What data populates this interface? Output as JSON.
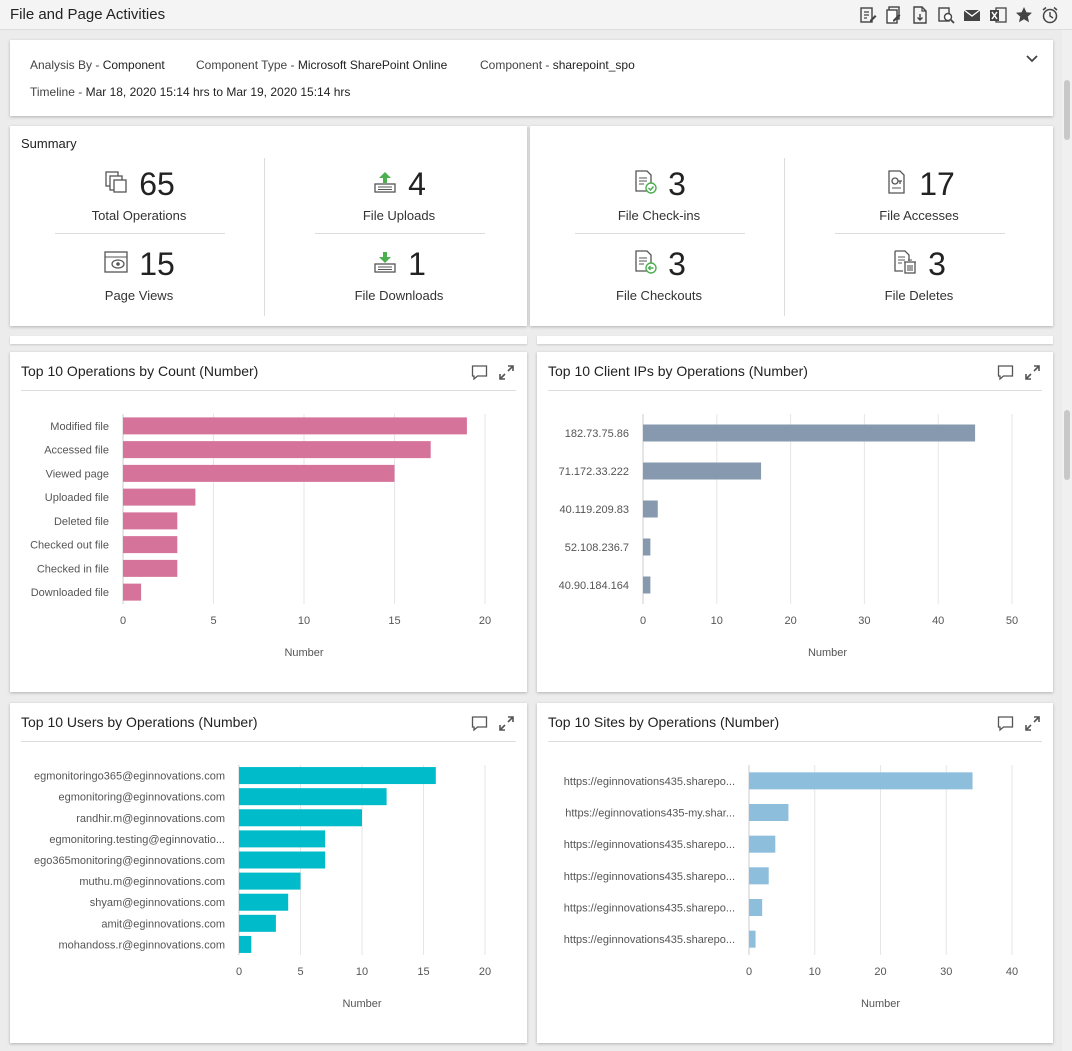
{
  "page": {
    "title": "File and Page Activities"
  },
  "toolbar": {
    "icons": [
      "edit-report-icon",
      "copy-report-icon",
      "pdf-export-icon",
      "print-preview-icon",
      "email-icon",
      "excel-export-icon",
      "favorite-star-icon",
      "schedule-alarm-icon"
    ]
  },
  "filters": {
    "analysis_by_label": "Analysis By - ",
    "analysis_by_value": "Component",
    "component_type_label": "Component Type - ",
    "component_type_value": "Microsoft SharePoint Online",
    "component_label": "Component - ",
    "component_value": "sharepoint_spo",
    "timeline_label": "Timeline - ",
    "timeline_value": "Mar 18, 2020 15:14 hrs to Mar 19, 2020 15:14 hrs"
  },
  "summary": {
    "title": "Summary",
    "total_operations": {
      "value": "65",
      "label": "Total Operations"
    },
    "file_uploads": {
      "value": "4",
      "label": "File Uploads"
    },
    "page_views": {
      "value": "15",
      "label": "Page Views"
    },
    "file_downloads": {
      "value": "1",
      "label": "File Downloads"
    },
    "file_checkins": {
      "value": "3",
      "label": "File Check-ins"
    },
    "file_accesses": {
      "value": "17",
      "label": "File Accesses"
    },
    "file_checkouts": {
      "value": "3",
      "label": "File Checkouts"
    },
    "file_deletes": {
      "value": "3",
      "label": "File Deletes"
    }
  },
  "colors": {
    "operations": "#d5739a",
    "client_ips": "#8699ae",
    "users": "#00bbc9",
    "sites": "#8dbedc",
    "icon_green": "#4caf50"
  },
  "chart_data": [
    {
      "type": "bar",
      "orientation": "horizontal",
      "title": "Top 10 Operations by Count (Number)",
      "categories": [
        "Modified file",
        "Accessed file",
        "Viewed page",
        "Uploaded file",
        "Deleted file",
        "Checked out file",
        "Checked in file",
        "Downloaded file"
      ],
      "values": [
        19,
        17,
        15,
        4,
        3,
        3,
        3,
        1
      ],
      "xlabel": "Number",
      "xlim": [
        0,
        20
      ],
      "xticks": [
        0,
        5,
        10,
        15,
        20
      ],
      "grid": true
    },
    {
      "type": "bar",
      "orientation": "horizontal",
      "title": "Top 10 Client IPs by Operations (Number)",
      "categories": [
        "182.73.75.86",
        "71.172.33.222",
        "40.119.209.83",
        "52.108.236.7",
        "40.90.184.164"
      ],
      "values": [
        45,
        16,
        2,
        1,
        1
      ],
      "xlabel": "Number",
      "xlim": [
        0,
        50
      ],
      "xticks": [
        0,
        10,
        20,
        30,
        40,
        50
      ],
      "grid": true
    },
    {
      "type": "bar",
      "orientation": "horizontal",
      "title": "Top 10 Users by Operations (Number)",
      "categories": [
        "egmonitoringo365@eginnovations.com",
        "egmonitoring@eginnovations.com",
        "randhir.m@eginnovations.com",
        "egmonitoring.testing@eginnovatio...",
        "ego365monitoring@eginnovations.com",
        "muthu.m@eginnovations.com",
        "shyam@eginnovations.com",
        "amit@eginnovations.com",
        "mohandoss.r@eginnovations.com"
      ],
      "values": [
        16,
        12,
        10,
        7,
        7,
        5,
        4,
        3,
        1
      ],
      "xlabel": "Number",
      "xlim": [
        0,
        20
      ],
      "xticks": [
        0,
        5,
        10,
        15,
        20
      ],
      "grid": true
    },
    {
      "type": "bar",
      "orientation": "horizontal",
      "title": "Top 10 Sites by Operations (Number)",
      "categories": [
        "https://eginnovations435.sharepo...",
        "https://eginnovations435-my.shar...",
        "https://eginnovations435.sharepo...",
        "https://eginnovations435.sharepo...",
        "https://eginnovations435.sharepo...",
        "https://eginnovations435.sharepo..."
      ],
      "values": [
        34,
        6,
        4,
        3,
        2,
        1
      ],
      "xlabel": "Number",
      "xlim": [
        0,
        40
      ],
      "xticks": [
        0,
        10,
        20,
        30,
        40
      ],
      "grid": true
    }
  ]
}
